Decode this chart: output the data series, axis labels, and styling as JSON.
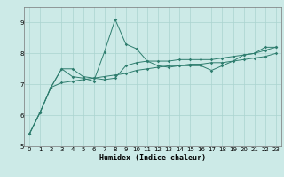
{
  "xlabel": "Humidex (Indice chaleur)",
  "x": [
    0,
    1,
    2,
    3,
    4,
    5,
    6,
    7,
    8,
    9,
    10,
    11,
    12,
    13,
    14,
    15,
    16,
    17,
    18,
    19,
    20,
    21,
    22,
    23
  ],
  "line1": [
    5.4,
    6.1,
    6.9,
    7.5,
    7.25,
    7.2,
    7.1,
    8.05,
    9.1,
    8.3,
    8.15,
    7.75,
    7.6,
    7.55,
    7.6,
    7.6,
    7.6,
    7.45,
    7.6,
    7.75,
    7.95,
    8.0,
    8.2,
    8.2
  ],
  "line2": [
    5.4,
    6.1,
    6.9,
    7.5,
    7.5,
    7.25,
    7.2,
    7.15,
    7.2,
    7.6,
    7.7,
    7.75,
    7.75,
    7.75,
    7.8,
    7.8,
    7.8,
    7.8,
    7.85,
    7.9,
    7.95,
    8.0,
    8.1,
    8.2
  ],
  "line3": [
    5.4,
    6.1,
    6.9,
    7.05,
    7.1,
    7.15,
    7.2,
    7.25,
    7.3,
    7.35,
    7.45,
    7.5,
    7.55,
    7.6,
    7.6,
    7.65,
    7.65,
    7.7,
    7.7,
    7.75,
    7.8,
    7.85,
    7.9,
    8.0
  ],
  "ylim": [
    5.0,
    9.5
  ],
  "xlim": [
    -0.5,
    23.5
  ],
  "yticks": [
    5,
    6,
    7,
    8,
    9
  ],
  "xticks": [
    0,
    1,
    2,
    3,
    4,
    5,
    6,
    7,
    8,
    9,
    10,
    11,
    12,
    13,
    14,
    15,
    16,
    17,
    18,
    19,
    20,
    21,
    22,
    23
  ],
  "line_color": "#2e7d6e",
  "bg_color": "#cceae7",
  "grid_color": "#aad4d0",
  "marker": "D",
  "marker_size": 1.8,
  "linewidth": 0.7,
  "tick_fontsize": 5.0,
  "xlabel_fontsize": 6.0
}
